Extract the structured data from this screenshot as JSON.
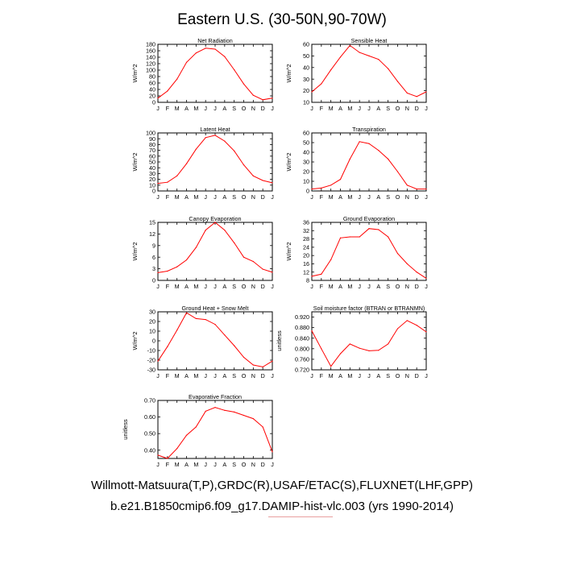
{
  "title": "Eastern U.S. (30-50N,90-70W)",
  "footer": {
    "line1": "Willmott-Matsuura(T,P),GRDC(R),USAF/ETAC(S),FLUXNET(LHF,GPP)",
    "line2": "b.e21.B1850cmip6.f09_g17.DAMIP-hist-vlc.003 (yrs 1990-2014)"
  },
  "line_color": "#ff0000",
  "chart_data": [
    {
      "type": "line",
      "title": "Net Radiation",
      "ylabel": "W/m^2",
      "categories": [
        "J",
        "F",
        "M",
        "A",
        "M",
        "J",
        "J",
        "A",
        "S",
        "O",
        "N",
        "D",
        "J"
      ],
      "ylim": [
        0,
        180
      ],
      "yticks": [
        0,
        20,
        40,
        60,
        80,
        100,
        120,
        140,
        160,
        180
      ],
      "ytick_labels": [
        "0",
        "20",
        "40",
        "60",
        "80",
        "100",
        "120",
        "140",
        "160",
        "180"
      ],
      "values": [
        13,
        35,
        72,
        124,
        153,
        168,
        165,
        142,
        101,
        57,
        22,
        8,
        13
      ]
    },
    {
      "type": "line",
      "title": "Sensible Heat",
      "ylabel": "W/m^2",
      "categories": [
        "J",
        "F",
        "M",
        "A",
        "M",
        "J",
        "J",
        "A",
        "S",
        "O",
        "N",
        "D",
        "J"
      ],
      "ylim": [
        10,
        60
      ],
      "yticks": [
        10,
        20,
        30,
        40,
        50,
        60
      ],
      "ytick_labels": [
        "10",
        "20",
        "30",
        "40",
        "50",
        "60"
      ],
      "values": [
        19,
        26,
        38,
        49,
        59,
        53,
        50,
        47,
        39,
        28,
        18,
        15,
        19
      ]
    },
    {
      "type": "line",
      "title": "Latent Heat",
      "ylabel": "W/m^2",
      "categories": [
        "J",
        "F",
        "M",
        "A",
        "M",
        "J",
        "J",
        "A",
        "S",
        "O",
        "N",
        "D",
        "J"
      ],
      "ylim": [
        0,
        100
      ],
      "yticks": [
        0,
        10,
        20,
        30,
        40,
        50,
        60,
        70,
        80,
        90,
        100
      ],
      "ytick_labels": [
        "0",
        "10",
        "20",
        "30",
        "40",
        "50",
        "60",
        "70",
        "80",
        "90",
        "100"
      ],
      "values": [
        13,
        15,
        26,
        47,
        72,
        92,
        96,
        86,
        69,
        45,
        26,
        18,
        14
      ]
    },
    {
      "type": "line",
      "title": "Transpiration",
      "ylabel": "W/m^2",
      "categories": [
        "J",
        "F",
        "M",
        "A",
        "M",
        "J",
        "J",
        "A",
        "S",
        "O",
        "N",
        "D",
        "J"
      ],
      "ylim": [
        0,
        60
      ],
      "yticks": [
        0,
        10,
        20,
        30,
        40,
        50,
        60
      ],
      "ytick_labels": [
        "0",
        "10",
        "20",
        "30",
        "40",
        "50",
        "60"
      ],
      "values": [
        2,
        3,
        6,
        12,
        33,
        51,
        49,
        42,
        33,
        20,
        6,
        2,
        2
      ]
    },
    {
      "type": "line",
      "title": "Canopy Evaporation",
      "ylabel": "W/m^2",
      "categories": [
        "J",
        "F",
        "M",
        "A",
        "M",
        "J",
        "J",
        "A",
        "S",
        "O",
        "N",
        "D",
        "J"
      ],
      "ylim": [
        0,
        15
      ],
      "yticks": [
        0,
        3,
        6,
        9,
        12,
        15
      ],
      "ytick_labels": [
        "0",
        "3",
        "6",
        "9",
        "12",
        "15"
      ],
      "values": [
        2,
        2.4,
        3.5,
        5.3,
        8.5,
        13,
        15,
        13,
        9.7,
        6,
        4.9,
        2.9,
        2.1
      ]
    },
    {
      "type": "line",
      "title": "Ground Evaporation",
      "ylabel": "W/m^2",
      "categories": [
        "J",
        "F",
        "M",
        "A",
        "M",
        "J",
        "J",
        "A",
        "S",
        "O",
        "N",
        "D",
        "J"
      ],
      "ylim": [
        8,
        36
      ],
      "yticks": [
        8,
        12,
        16,
        20,
        24,
        28,
        32,
        36
      ],
      "ytick_labels": [
        "8",
        "12",
        "16",
        "20",
        "24",
        "28",
        "32",
        "36"
      ],
      "values": [
        10,
        11,
        18,
        28.5,
        29,
        29,
        33,
        32.5,
        29,
        21,
        16,
        12,
        9
      ]
    },
    {
      "type": "line",
      "title": "Ground Heat + Snow Melt",
      "ylabel": "W/m^2",
      "categories": [
        "J",
        "F",
        "M",
        "A",
        "M",
        "J",
        "J",
        "A",
        "S",
        "O",
        "N",
        "D",
        "J"
      ],
      "ylim": [
        -30,
        30
      ],
      "yticks": [
        -30,
        -20,
        -10,
        0,
        10,
        20,
        30
      ],
      "ytick_labels": [
        "-30",
        "-20",
        "-10",
        "0",
        "10",
        "20",
        "30"
      ],
      "values": [
        -21,
        -6,
        11,
        29,
        23,
        22,
        17,
        6,
        -5,
        -17,
        -25,
        -27,
        -21
      ]
    },
    {
      "type": "line",
      "title": "Soil moisture factor (BTRAN or BTRANMN)",
      "ylabel": "unitless",
      "categories": [
        "J",
        "F",
        "M",
        "A",
        "M",
        "J",
        "J",
        "A",
        "S",
        "O",
        "N",
        "D",
        "J"
      ],
      "ylim": [
        0.72,
        0.94
      ],
      "yticks": [
        0.72,
        0.76,
        0.8,
        0.84,
        0.88,
        0.92
      ],
      "ytick_labels": [
        "0.720",
        "0.760",
        "0.800",
        "0.840",
        "0.880",
        "0.920"
      ],
      "values": [
        0.868,
        0.8,
        0.733,
        0.781,
        0.818,
        0.802,
        0.792,
        0.794,
        0.818,
        0.876,
        0.907,
        0.889,
        0.864
      ]
    },
    {
      "type": "line",
      "title": "Evaporative Fraction",
      "ylabel": "unitless",
      "categories": [
        "J",
        "F",
        "M",
        "A",
        "M",
        "J",
        "J",
        "A",
        "S",
        "O",
        "N",
        "D",
        "J"
      ],
      "ylim": [
        0.35,
        0.7
      ],
      "yticks": [
        0.4,
        0.5,
        0.6,
        0.7
      ],
      "ytick_labels": [
        "0.40",
        "0.50",
        "0.60",
        "0.70"
      ],
      "values": [
        0.37,
        0.35,
        0.41,
        0.49,
        0.54,
        0.635,
        0.658,
        0.64,
        0.63,
        0.61,
        0.59,
        0.54,
        0.39
      ]
    }
  ]
}
